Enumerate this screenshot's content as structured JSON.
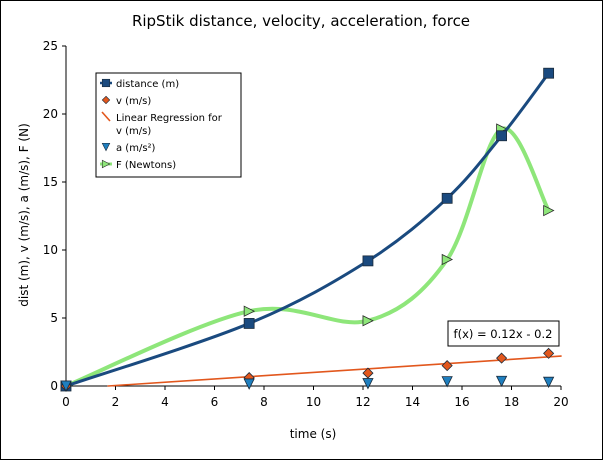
{
  "chart_data": {
    "type": "line",
    "title": "RipStik distance, velocity, acceleration, force",
    "xlabel": "time (s)",
    "ylabel": "dist (m), v (m/s), a (m/s), F (N)",
    "xlim": [
      0,
      20
    ],
    "ylim": [
      0,
      25
    ],
    "x_ticks": [
      0,
      2,
      4,
      6,
      8,
      10,
      12,
      14,
      16,
      18,
      20
    ],
    "y_ticks": [
      0,
      5,
      10,
      15,
      20,
      25
    ],
    "grid": false,
    "legend_position": "top-left",
    "series": [
      {
        "name": "distance (m)",
        "marker": "square",
        "color": "#1a4a7f",
        "smooth": true,
        "x": [
          0,
          7.4,
          12.2,
          15.4,
          17.6,
          19.5
        ],
        "y": [
          0,
          4.6,
          9.2,
          13.8,
          18.4,
          23.0
        ]
      },
      {
        "name": "v  (m/s)",
        "marker": "diamond",
        "color": "#e2571d",
        "line": false,
        "x": [
          0,
          7.4,
          12.2,
          15.4,
          17.6,
          19.5
        ],
        "y": [
          0,
          0.62,
          0.95,
          1.5,
          2.05,
          2.4
        ]
      },
      {
        "name": "Linear Regression for v  (m/s)",
        "marker": "none",
        "color": "#e2571d",
        "x": [
          1.7,
          20.0
        ],
        "y": [
          0.0,
          2.2
        ]
      },
      {
        "name": "a (m/s²)",
        "marker": "triangle-down",
        "color": "#1f7fbf",
        "line": false,
        "x": [
          0,
          7.4,
          12.2,
          15.4,
          17.6,
          19.5
        ],
        "y": [
          0,
          0.15,
          0.18,
          0.32,
          0.35,
          0.28
        ]
      },
      {
        "name": "F (Newtons)",
        "marker": "triangle-right",
        "color": "#8ee67a",
        "smooth": true,
        "x": [
          0,
          7.4,
          12.2,
          15.4,
          17.6,
          19.5
        ],
        "y": [
          0,
          5.5,
          4.8,
          9.3,
          18.9,
          12.9
        ]
      }
    ],
    "annotation": "f(x) = 0.12x - 0.2"
  }
}
